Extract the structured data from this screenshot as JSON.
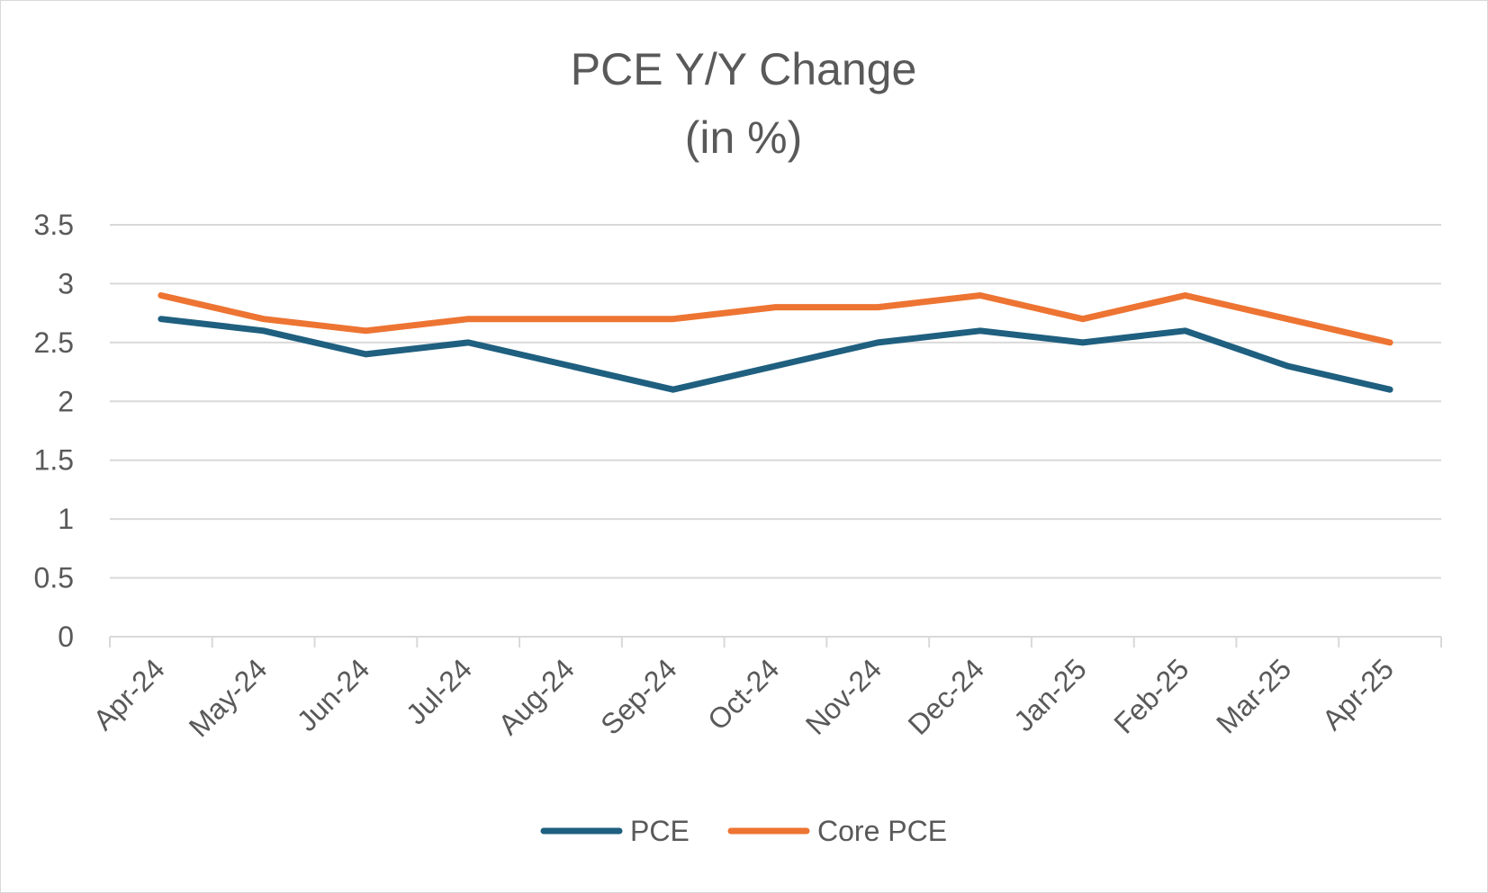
{
  "chart_data": {
    "type": "line",
    "title": "PCE Y/Y Change",
    "subtitle": "(in %)",
    "xlabel": "",
    "ylabel": "",
    "categories": [
      "Apr-24",
      "May-24",
      "Jun-24",
      "Jul-24",
      "Aug-24",
      "Sep-24",
      "Oct-24",
      "Nov-24",
      "Dec-24",
      "Jan-25",
      "Feb-25",
      "Mar-25",
      "Apr-25"
    ],
    "series": [
      {
        "name": "PCE",
        "color": "#1f5f7f",
        "values": [
          2.7,
          2.6,
          2.4,
          2.5,
          2.3,
          2.1,
          2.3,
          2.5,
          2.6,
          2.5,
          2.6,
          2.3,
          2.1
        ]
      },
      {
        "name": "Core PCE",
        "color": "#ed7432",
        "values": [
          2.9,
          2.7,
          2.6,
          2.7,
          2.7,
          2.7,
          2.8,
          2.8,
          2.9,
          2.7,
          2.9,
          2.7,
          2.5
        ]
      }
    ],
    "ylim": [
      0,
      3.5
    ],
    "yticks": [
      "0",
      "0.5",
      "1",
      "1.5",
      "2",
      "2.5",
      "3",
      "3.5"
    ],
    "grid": true,
    "legend": "bottom"
  }
}
